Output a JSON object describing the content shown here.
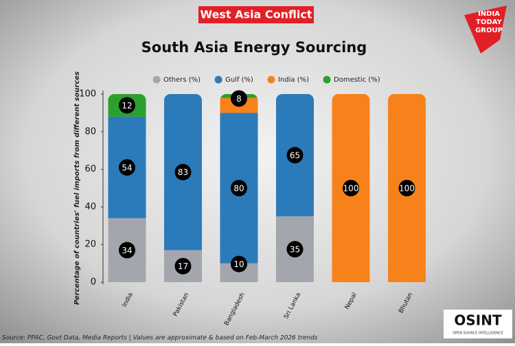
{
  "banner": "West Asia Conflict",
  "logo": {
    "line1": "INDIA",
    "line2": "TODAY",
    "line3": "GROUP"
  },
  "badge": {
    "name": "OSINT",
    "tagline": "OPEN SOURCE INTELLIGENCE"
  },
  "chart_data": {
    "type": "stacked_bar",
    "title": "South Asia Energy Sourcing",
    "y_label": "Percentage of countries' fuel imports from different sources",
    "source": "Source: PPAC, Govt Data, Media Reports |  Values are approximate & based on Feb-March 2026 trends",
    "categories": [
      "India",
      "Pakistan",
      "Bangladesh",
      "Sri Lanka",
      "Nepal",
      "Bhutan"
    ],
    "series": [
      {
        "name": "Others (%)",
        "color": "#a3a6ad",
        "values": [
          34,
          17,
          10,
          35,
          0,
          0
        ]
      },
      {
        "name": "Gulf (%)",
        "color": "#2b7bba",
        "values": [
          54,
          83,
          80,
          65,
          0,
          0
        ]
      },
      {
        "name": "India (%)",
        "color": "#f7821b",
        "values": [
          0,
          0,
          8,
          0,
          100,
          100
        ]
      },
      {
        "name": "Domestic (%)",
        "color": "#2ca02c",
        "values": [
          12,
          0,
          2,
          0,
          0,
          0
        ]
      }
    ],
    "ylim": [
      0,
      100
    ],
    "yticks": [
      0,
      20,
      40,
      60,
      80,
      100
    ],
    "grid": false,
    "legend": "top"
  }
}
